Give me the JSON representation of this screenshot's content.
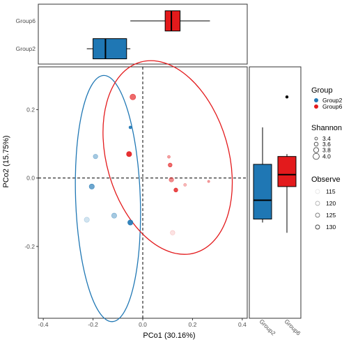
{
  "colors": {
    "Group2": "#1f77b4",
    "Group6": "#e31a1c"
  },
  "chart_data": [
    {
      "type": "boxplot",
      "orientation": "horizontal",
      "categories": [
        "Group6",
        "Group2"
      ],
      "xlim": [
        -0.42,
        0.42
      ],
      "boxes": [
        {
          "name": "Group6",
          "min": -0.05,
          "q1": 0.09,
          "median": 0.115,
          "q3": 0.15,
          "max": 0.27
        },
        {
          "name": "Group2",
          "min": -0.225,
          "q1": -0.2,
          "median": -0.15,
          "q3": -0.065,
          "max": -0.05
        }
      ]
    },
    {
      "type": "scatter",
      "xlabel": "PCo1 (30.16%)",
      "ylabel": "PCo2 (15.75%)",
      "xlim": [
        -0.42,
        0.42
      ],
      "ylim": [
        -0.41,
        0.325
      ],
      "xticks": [
        "-0.4",
        "-0.2",
        "0.0",
        "0.2",
        "0.4"
      ],
      "xtick_values": [
        -0.4,
        -0.2,
        0.0,
        0.2,
        0.4
      ],
      "yticks": [
        "0.2",
        "0.0",
        "-0.2"
      ],
      "ytick_values": [
        0.2,
        0.0,
        -0.2
      ],
      "reference_lines": {
        "x": 0,
        "y": 0
      },
      "points": [
        {
          "group": "Group2",
          "x": -0.05,
          "y": 0.148,
          "shannon": 3.4,
          "observe": 130
        },
        {
          "group": "Group2",
          "x": -0.19,
          "y": 0.063,
          "shannon": 3.7,
          "observe": 120
        },
        {
          "group": "Group2",
          "x": -0.205,
          "y": -0.025,
          "shannon": 3.8,
          "observe": 125
        },
        {
          "group": "Group2",
          "x": -0.115,
          "y": -0.11,
          "shannon": 3.8,
          "observe": 120
        },
        {
          "group": "Group2",
          "x": -0.05,
          "y": -0.13,
          "shannon": 3.8,
          "observe": 130
        },
        {
          "group": "Group2",
          "x": -0.225,
          "y": -0.122,
          "shannon": 3.8,
          "observe": 116
        },
        {
          "group": "Group6",
          "x": -0.04,
          "y": 0.237,
          "shannon": 3.9,
          "observe": 125
        },
        {
          "group": "Group6",
          "x": -0.055,
          "y": 0.07,
          "shannon": 3.8,
          "observe": 130
        },
        {
          "group": "Group6",
          "x": 0.11,
          "y": 0.038,
          "shannon": 3.6,
          "observe": 125
        },
        {
          "group": "Group6",
          "x": 0.115,
          "y": -0.005,
          "shannon": 3.7,
          "observe": 122
        },
        {
          "group": "Group6",
          "x": 0.133,
          "y": -0.035,
          "shannon": 3.6,
          "observe": 128
        },
        {
          "group": "Group6",
          "x": 0.17,
          "y": -0.02,
          "shannon": 3.4,
          "observe": 118
        },
        {
          "group": "Group6",
          "x": 0.265,
          "y": -0.01,
          "shannon": 3.3,
          "observe": 120
        },
        {
          "group": "Group6",
          "x": 0.105,
          "y": 0.062,
          "shannon": 3.4,
          "observe": 120
        },
        {
          "group": "Group6",
          "x": 0.12,
          "y": -0.16,
          "shannon": 3.7,
          "observe": 113
        }
      ],
      "ellipses": [
        {
          "group": "Group2",
          "cx": -0.14,
          "cy": -0.06,
          "rx": 0.13,
          "ry": 0.36,
          "angle_deg": -2
        },
        {
          "group": "Group6",
          "cx": 0.1,
          "cy": 0.06,
          "rx": 0.245,
          "ry": 0.29,
          "angle_deg": -16
        }
      ]
    },
    {
      "type": "boxplot",
      "orientation": "vertical",
      "categories": [
        "Group2",
        "Group6"
      ],
      "ylim": [
        -0.41,
        0.325
      ],
      "boxes": [
        {
          "name": "Group2",
          "min": -0.13,
          "q1": -0.12,
          "median": -0.065,
          "q3": 0.04,
          "max": 0.148
        },
        {
          "name": "Group6",
          "min": -0.16,
          "q1": -0.025,
          "median": 0.01,
          "q3": 0.063,
          "max": 0.07,
          "outliers": [
            0.237
          ]
        }
      ]
    }
  ],
  "legend": {
    "group": {
      "title": "Group",
      "items": [
        "Group2",
        "Group6"
      ]
    },
    "shannon": {
      "title": "Shannon",
      "items": [
        "3.4",
        "3.6",
        "3.8",
        "4.0"
      ],
      "values": [
        3.4,
        3.6,
        3.8,
        4.0
      ]
    },
    "observe": {
      "title": "Observe",
      "items": [
        "115",
        "120",
        "125",
        "130"
      ],
      "values": [
        115,
        120,
        125,
        130
      ]
    }
  }
}
